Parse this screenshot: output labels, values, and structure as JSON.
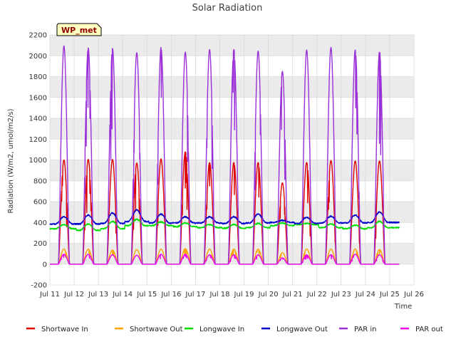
{
  "chart_data": {
    "type": "line",
    "title": "Solar Radiation",
    "xlabel": "Time",
    "ylabel": "Radiation (W/m2, umol/m2/s)",
    "station_label": "WP_met",
    "ylim": [
      -200,
      2200
    ],
    "yticks": [
      -200,
      0,
      200,
      400,
      600,
      800,
      1000,
      1200,
      1400,
      1600,
      1800,
      2000,
      2200
    ],
    "xlim_days": [
      11,
      26
    ],
    "xticks": [
      "Jul 11",
      "Jul 12",
      "Jul 13",
      "Jul 14",
      "Jul 15",
      "Jul 16",
      "Jul 17",
      "Jul 18",
      "Jul 19",
      "Jul 20",
      "Jul 21",
      "Jul 22",
      "Jul 23",
      "Jul 24",
      "Jul 25",
      "Jul 26"
    ],
    "days": [
      11.58,
      12.58,
      13.58,
      14.58,
      15.58,
      16.58,
      17.58,
      18.58,
      19.58,
      20.58,
      21.58,
      22.58,
      23.58,
      24.58
    ],
    "series": [
      {
        "name": "Shortwave In",
        "color": "#dd0000",
        "kind": "diurnal",
        "peaks": [
          1000,
          1005,
          1005,
          970,
          1010,
          1080,
          975,
          975,
          975,
          780,
          975,
          995,
          990,
          990
        ]
      },
      {
        "name": "Shortwave Out",
        "color": "#ffa500",
        "kind": "diurnal",
        "peaks": [
          145,
          145,
          135,
          140,
          145,
          150,
          145,
          145,
          145,
          110,
          145,
          145,
          145,
          140
        ]
      },
      {
        "name": "Longwave In",
        "color": "#00dd00",
        "kind": "baseline",
        "base": [
          340,
          325,
          340,
          370,
          370,
          360,
          350,
          345,
          350,
          370,
          380,
          350,
          340,
          350
        ],
        "day": [
          380,
          385,
          410,
          430,
          405,
          395,
          380,
          380,
          390,
          395,
          390,
          385,
          375,
          410
        ]
      },
      {
        "name": "Longwave Out",
        "color": "#0000cc",
        "kind": "baseline",
        "base": [
          385,
          385,
          390,
          410,
          395,
          395,
          395,
          390,
          395,
          400,
          390,
          395,
          395,
          400
        ],
        "day": [
          455,
          470,
          490,
          520,
          480,
          455,
          455,
          455,
          480,
          420,
          450,
          460,
          470,
          500
        ]
      },
      {
        "name": "PAR in",
        "color": "#9b30d9",
        "kind": "diurnal",
        "peaks": [
          2095,
          2075,
          2070,
          2030,
          2080,
          2035,
          2060,
          2060,
          2045,
          1850,
          2055,
          2080,
          2055,
          2040
        ]
      },
      {
        "name": "PAR out",
        "color": "#ee00ee",
        "kind": "diurnal",
        "peaks": [
          95,
          95,
          90,
          85,
          95,
          95,
          90,
          90,
          90,
          60,
          90,
          90,
          95,
          90
        ]
      }
    ],
    "legend_position": "bottom",
    "grid": true
  }
}
